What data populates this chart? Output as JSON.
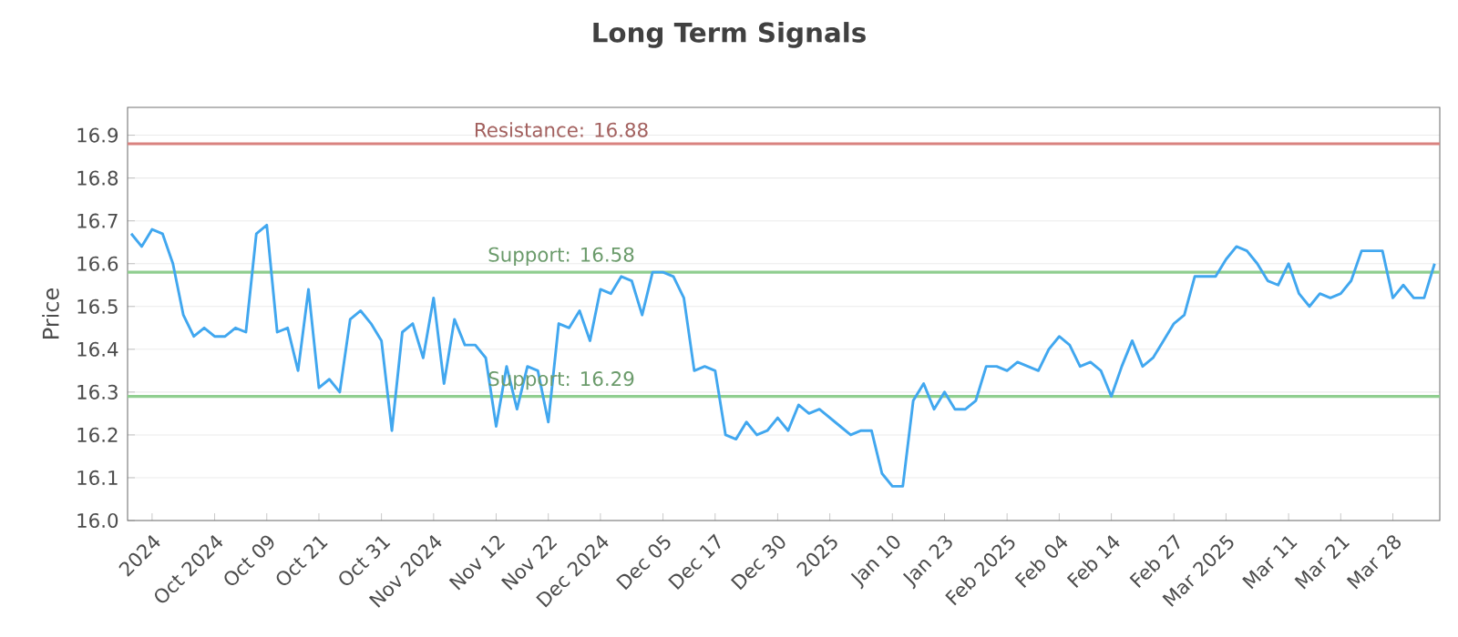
{
  "chart_data": {
    "type": "line",
    "title": "Long Term Signals",
    "ylabel": "Price",
    "categories": [
      null,
      null,
      "2024",
      null,
      null,
      null,
      null,
      null,
      "Oct 2024",
      null,
      null,
      null,
      null,
      "Oct 09",
      null,
      null,
      null,
      null,
      "Oct 21",
      null,
      null,
      null,
      null,
      null,
      "Oct 31",
      null,
      null,
      null,
      null,
      "Nov 2024",
      null,
      null,
      null,
      null,
      null,
      "Nov 12",
      null,
      null,
      null,
      null,
      "Nov 22",
      null,
      null,
      null,
      null,
      "Dec 2024",
      null,
      null,
      null,
      null,
      null,
      "Dec 05",
      null,
      null,
      null,
      null,
      "Dec 17",
      null,
      null,
      null,
      null,
      null,
      "Dec 30",
      null,
      null,
      null,
      null,
      "2025",
      null,
      null,
      null,
      null,
      null,
      "Jan 10",
      null,
      null,
      null,
      null,
      "Jan 23",
      null,
      null,
      null,
      null,
      null,
      "Feb 2025",
      null,
      null,
      null,
      null,
      "Feb 04",
      null,
      null,
      null,
      null,
      "Feb 14",
      null,
      null,
      null,
      null,
      null,
      "Feb 27",
      null,
      null,
      null,
      null,
      "Mar 2025",
      null,
      null,
      null,
      null,
      null,
      "Mar 11",
      null,
      null,
      null,
      null,
      "Mar 21",
      null,
      null,
      null,
      null,
      "Mar 28",
      null,
      null,
      null,
      null
    ],
    "series": [
      {
        "color": "#41a7ef",
        "values": [
          16.67,
          16.64,
          16.68,
          16.67,
          16.6,
          16.48,
          16.43,
          16.45,
          16.43,
          16.43,
          16.45,
          16.44,
          16.67,
          16.69,
          16.44,
          16.45,
          16.35,
          16.54,
          16.31,
          16.33,
          16.3,
          16.47,
          16.49,
          16.46,
          16.42,
          16.21,
          16.44,
          16.46,
          16.38,
          16.52,
          16.32,
          16.47,
          16.41,
          16.41,
          16.38,
          16.22,
          16.36,
          16.26,
          16.36,
          16.35,
          16.23,
          16.46,
          16.45,
          16.49,
          16.42,
          16.54,
          16.53,
          16.57,
          16.56,
          16.48,
          16.58,
          16.58,
          16.57,
          16.52,
          16.35,
          16.36,
          16.35,
          16.2,
          16.19,
          16.23,
          16.2,
          16.21,
          16.24,
          16.21,
          16.27,
          16.25,
          16.26,
          16.24,
          16.22,
          16.2,
          16.21,
          16.21,
          16.11,
          16.08,
          16.08,
          16.28,
          16.32,
          16.26,
          16.3,
          16.26,
          16.26,
          16.28,
          16.36,
          16.36,
          16.35,
          16.37,
          16.36,
          16.35,
          16.4,
          16.43,
          16.41,
          16.36,
          16.37,
          16.35,
          16.29,
          16.36,
          16.42,
          16.36,
          16.38,
          16.42,
          16.46,
          16.48,
          16.57,
          16.57,
          16.57,
          16.61,
          16.64,
          16.63,
          16.6,
          16.56,
          16.55,
          16.6,
          16.53,
          16.5,
          16.53,
          16.52,
          16.53,
          16.56,
          16.63,
          16.63,
          16.63,
          16.52,
          16.55,
          16.52,
          16.52,
          16.6
        ]
      }
    ],
    "ylim": [
      16.0,
      16.965
    ],
    "yticks": [
      {
        "value": 16.0,
        "label": "16.0"
      },
      16.1,
      16.2,
      16.3,
      16.4,
      16.5,
      16.6,
      16.7,
      16.8,
      16.9
    ],
    "grid": "y",
    "marker": "none",
    "line_style": "solid",
    "ref_lines": [
      {
        "axis": "y",
        "value": 16.88,
        "label": "Resistance: 16.88",
        "color": "#d9827f"
      },
      {
        "axis": "y",
        "value": 16.58,
        "label": "Support: 16.58",
        "color": "#8fce8f"
      },
      {
        "axis": "y",
        "value": 16.29,
        "label": "Support: 16.29",
        "color": "#8fce8f"
      }
    ]
  }
}
